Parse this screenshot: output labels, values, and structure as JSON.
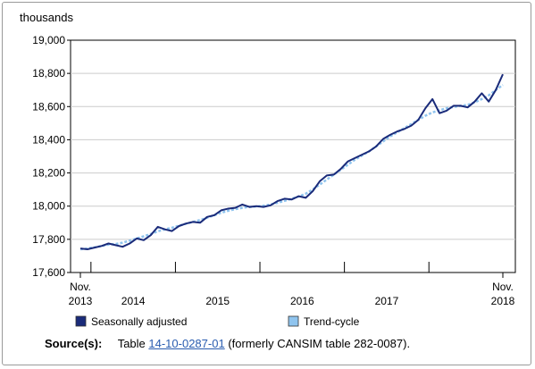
{
  "chart_data": {
    "type": "line",
    "ylabel": "thousands",
    "ylim": [
      17600,
      19000
    ],
    "yticks": [
      17600,
      17800,
      18000,
      18200,
      18400,
      18600,
      18800,
      19000
    ],
    "ytick_labels": [
      "17,600",
      "17,800",
      "18,000",
      "18,200",
      "18,400",
      "18,600",
      "18,800",
      "19,000"
    ],
    "x_labels": [
      {
        "line1": "Nov.",
        "line2": "2013",
        "index": 0
      },
      {
        "line1": "",
        "line2": "2014",
        "index": 7.5
      },
      {
        "line1": "",
        "line2": "2015",
        "index": 19.5
      },
      {
        "line1": "",
        "line2": "2016",
        "index": 31.5
      },
      {
        "line1": "",
        "line2": "2017",
        "index": 43.5
      },
      {
        "line1": "Nov.",
        "line2": "2018",
        "index": 60
      }
    ],
    "year_boundaries": [
      1.5,
      13.5,
      25.5,
      37.5,
      49.5
    ],
    "grid": true,
    "series": [
      {
        "name": "Seasonally adjusted",
        "color": "#1a2b7a",
        "values": [
          17745,
          17740,
          17750,
          17760,
          17775,
          17765,
          17755,
          17775,
          17805,
          17795,
          17825,
          17875,
          17860,
          17850,
          17880,
          17895,
          17905,
          17900,
          17935,
          17945,
          17975,
          17985,
          17990,
          18010,
          17995,
          18000,
          17995,
          18005,
          18030,
          18045,
          18040,
          18060,
          18050,
          18090,
          18150,
          18185,
          18190,
          18225,
          18270,
          18290,
          18310,
          18330,
          18360,
          18405,
          18430,
          18450,
          18465,
          18485,
          18520,
          18590,
          18645,
          18560,
          18575,
          18605,
          18605,
          18595,
          18630,
          18680,
          18630,
          18700,
          18795
        ]
      },
      {
        "name": "Trend-cycle",
        "color": "#8fc4ee",
        "values": [
          17740,
          17745,
          17752,
          17760,
          17768,
          17772,
          17780,
          17792,
          17805,
          17818,
          17832,
          17848,
          17860,
          17870,
          17882,
          17894,
          17905,
          17916,
          17930,
          17945,
          17960,
          17972,
          17982,
          17990,
          17995,
          17998,
          18002,
          18010,
          18020,
          18032,
          18044,
          18058,
          18075,
          18100,
          18130,
          18160,
          18190,
          18220,
          18250,
          18280,
          18305,
          18330,
          18360,
          18390,
          18420,
          18445,
          18470,
          18495,
          18520,
          18545,
          18565,
          18578,
          18590,
          18598,
          18604,
          18610,
          18625,
          18645,
          18668,
          18700,
          18730
        ]
      }
    ]
  },
  "source": {
    "label": "Source(s):",
    "prefix": "Table",
    "link": "14-10-0287-01",
    "suffix": "(formerly CANSIM table 282-0087)."
  }
}
